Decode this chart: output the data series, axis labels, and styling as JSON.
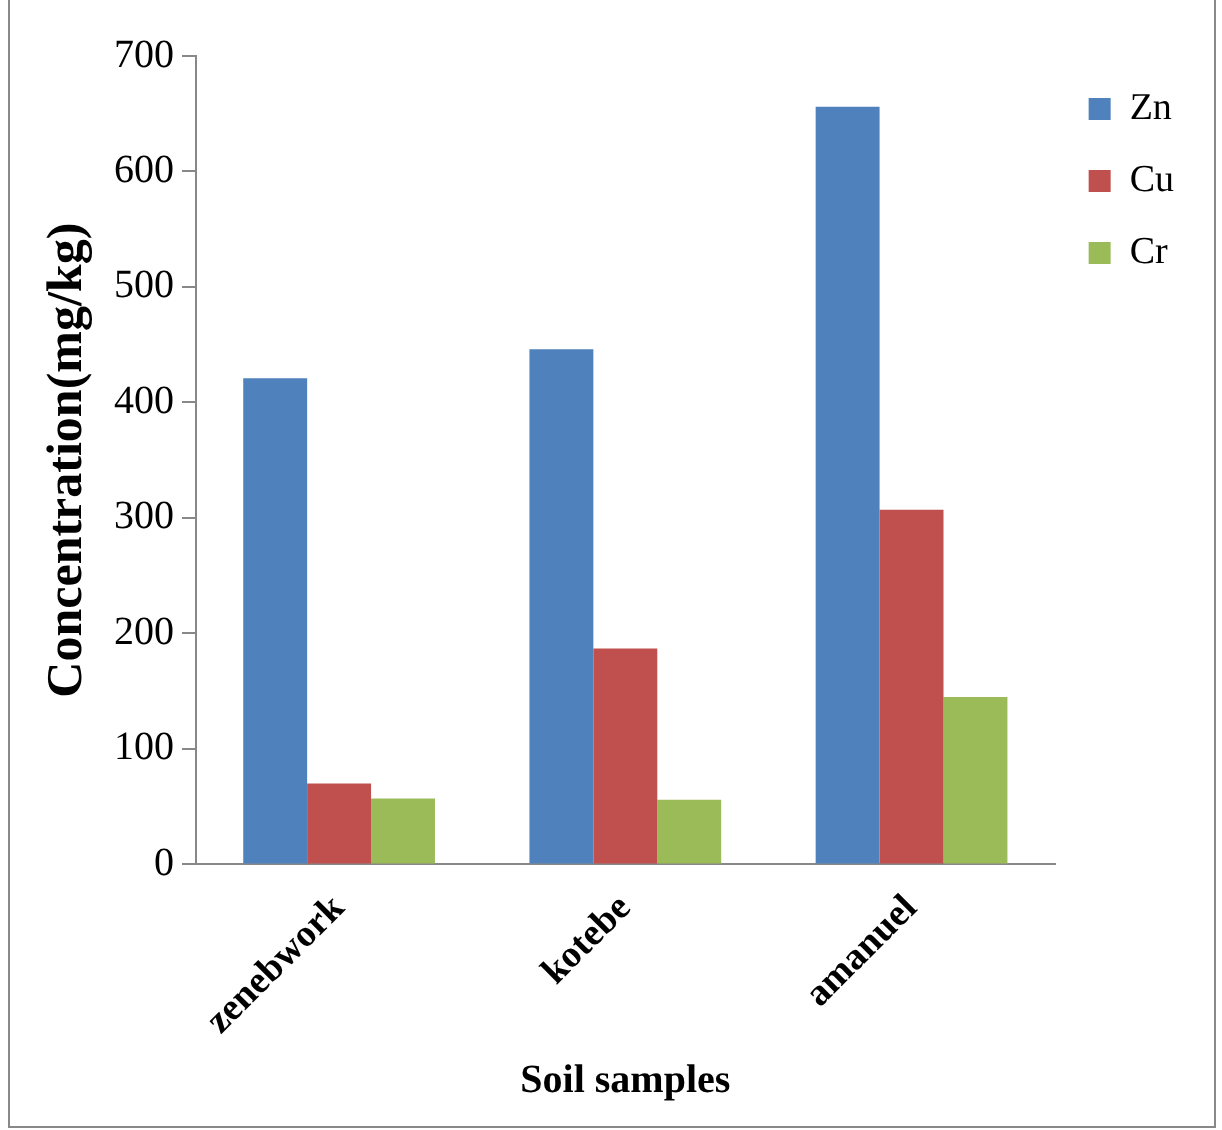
{
  "chart_data": {
    "type": "bar",
    "xlabel": "Soil samples",
    "ylabel": "Concentration(mg/kg)",
    "categories": [
      "zenebwork",
      "kotebe",
      "amanuel"
    ],
    "series": [
      {
        "name": "Zn",
        "color": "#4f81bd",
        "values": [
          421,
          446,
          656
        ]
      },
      {
        "name": "Cu",
        "color": "#c0504d",
        "values": [
          70,
          187,
          307
        ]
      },
      {
        "name": "Cr",
        "color": "#9bbb59",
        "values": [
          57,
          56,
          145
        ]
      }
    ],
    "ylim": [
      0,
      700
    ],
    "yticks": [
      0,
      100,
      200,
      300,
      400,
      500,
      600,
      700
    ],
    "grid": false,
    "legend": "right"
  }
}
